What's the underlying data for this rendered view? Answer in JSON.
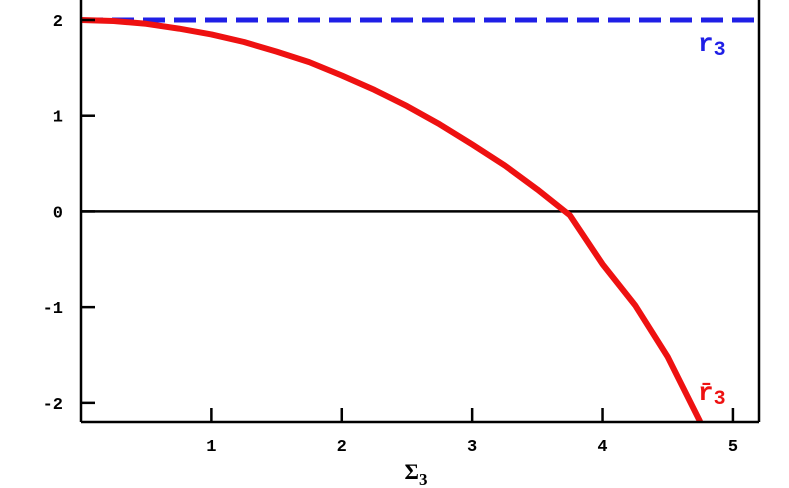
{
  "chart_data": {
    "type": "line",
    "xlabel": "Σ",
    "xlabel_sub": "3",
    "ylabel": "",
    "xlim": [
      0,
      5.2
    ],
    "ylim": [
      -2.2,
      2.0
    ],
    "x_ticks": [
      1,
      2,
      3,
      4,
      5
    ],
    "y_ticks": [
      2,
      1,
      0,
      -1,
      -2
    ],
    "grid": false,
    "zero_line": true,
    "series": [
      {
        "label": "r",
        "label_sub": "3",
        "style": "dashed",
        "color": "#1f1fe6",
        "x": [
          0,
          5.2
        ],
        "y": [
          2,
          2
        ]
      },
      {
        "label": "r̄",
        "label_sub": "3",
        "style": "solid",
        "color": "#ee1111",
        "x": [
          0,
          0.25,
          0.5,
          0.75,
          1.0,
          1.25,
          1.5,
          1.75,
          2.0,
          2.25,
          2.5,
          2.75,
          3.0,
          3.25,
          3.5,
          3.75,
          4.0,
          4.25,
          4.5,
          4.75
        ],
        "y": [
          2.0,
          1.99,
          1.96,
          1.91,
          1.85,
          1.77,
          1.67,
          1.56,
          1.42,
          1.27,
          1.1,
          0.91,
          0.7,
          0.48,
          0.23,
          -0.04,
          -0.55,
          -0.98,
          -1.52,
          -2.2
        ]
      }
    ]
  }
}
